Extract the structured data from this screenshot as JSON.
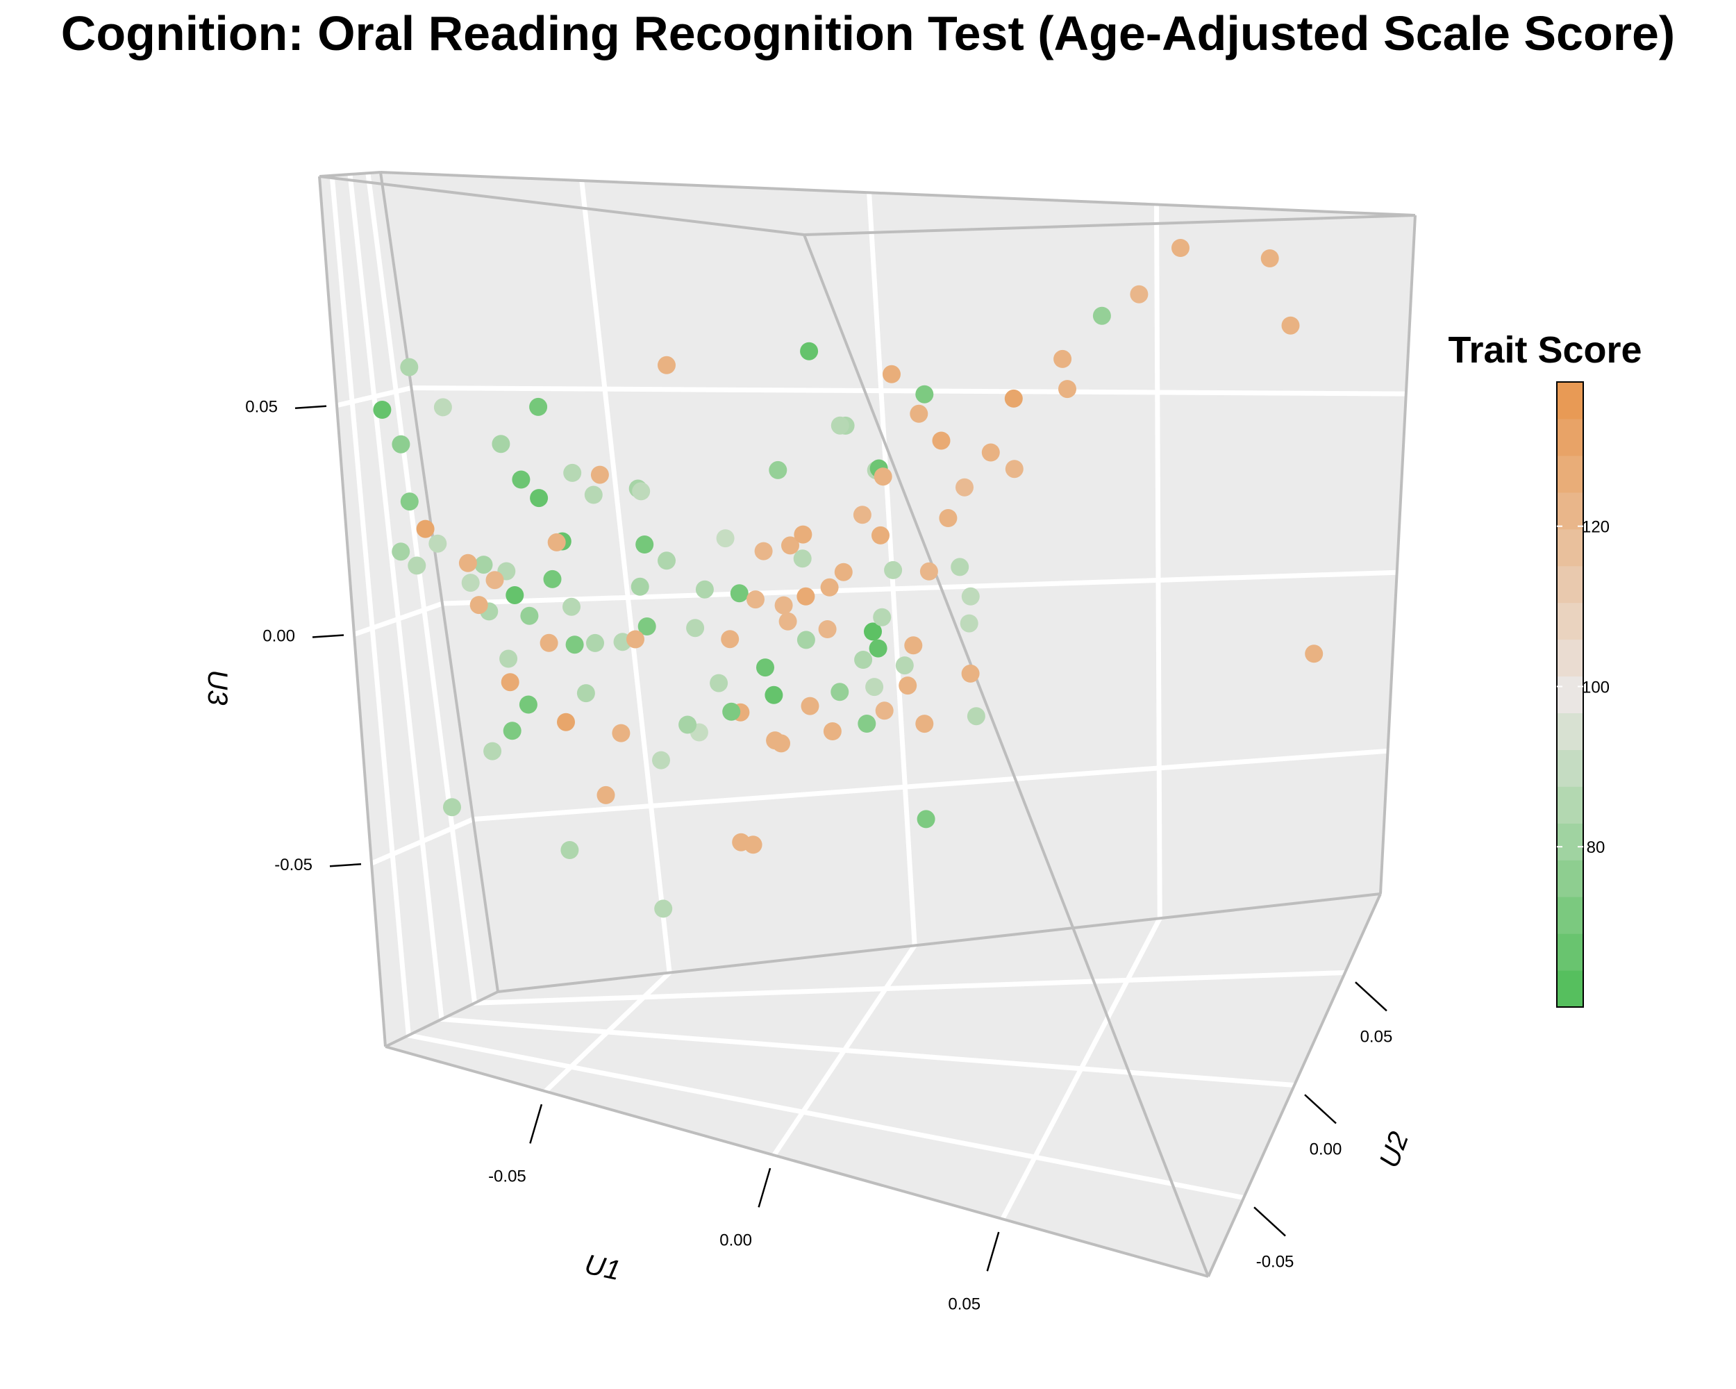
{
  "chart_data": {
    "type": "scatter",
    "projection": "3d",
    "title": "Cognition: Oral Reading Recognition Test (Age-Adjusted Scale Score)",
    "axes": {
      "x": {
        "label": "U1",
        "range": [
          -0.085,
          0.095
        ],
        "ticks": [
          -0.05,
          0.0,
          0.05
        ],
        "tick_labels": [
          "-0.05",
          "0.00",
          "0.05"
        ]
      },
      "y": {
        "label": "U2",
        "range": [
          -0.085,
          0.085
        ],
        "ticks": [
          -0.05,
          0.0,
          0.05
        ],
        "tick_labels": [
          "-0.05",
          "0.00",
          "0.05"
        ]
      },
      "z": {
        "label": "U3",
        "range": [
          -0.09,
          0.1
        ],
        "ticks": [
          -0.05,
          0.0,
          0.05
        ],
        "tick_labels": [
          "-0.05",
          "0.00",
          "0.05"
        ]
      }
    },
    "grid": true,
    "colorbar": {
      "title": "Trait Score",
      "range": [
        60,
        138
      ],
      "ticks": [
        80,
        100,
        120
      ],
      "tick_labels": [
        "80",
        "100",
        "120"
      ],
      "colors": {
        "low": "#4dbd56",
        "mid": "#eae6e3",
        "high": "#e8954c"
      }
    },
    "points": [
      {
        "x": -0.004,
        "y": 0.056,
        "z": 0.062,
        "value": 66
      },
      {
        "x": 0.053,
        "y": 0.057,
        "z": 0.073,
        "value": 78
      },
      {
        "x": 0.072,
        "y": 0.081,
        "z": 0.087,
        "value": 124
      },
      {
        "x": 0.085,
        "y": 0.032,
        "z": 0.093,
        "value": 124
      },
      {
        "x": 0.084,
        "y": 0.066,
        "z": 0.071,
        "value": 124
      },
      {
        "x": 0.079,
        "y": 0.026,
        "z": 0.082,
        "value": 122
      },
      {
        "x": 0.071,
        "y": 0.009,
        "z": 0.068,
        "value": 124
      },
      {
        "x": -0.027,
        "y": 0.036,
        "z": 0.059,
        "value": 124
      },
      {
        "x": 0.079,
        "y": -0.022,
        "z": 0.063,
        "value": 130
      },
      {
        "x": 0.083,
        "y": -0.064,
        "z": 0.072,
        "value": 126
      },
      {
        "x": 0.074,
        "y": -0.028,
        "z": 0.052,
        "value": 124
      },
      {
        "x": 0.055,
        "y": -0.012,
        "z": 0.041,
        "value": 120
      },
      {
        "x": 0.052,
        "y": 0.016,
        "z": 0.041,
        "value": 122
      },
      {
        "x": 0.062,
        "y": -0.033,
        "z": 0.038,
        "value": 124
      },
      {
        "x": 0.056,
        "y": -0.037,
        "z": 0.027,
        "value": 122
      },
      {
        "x": 0.058,
        "y": -0.061,
        "z": 0.042,
        "value": 122
      },
      {
        "x": 0.033,
        "y": -0.013,
        "z": 0.029,
        "value": 126
      },
      {
        "x": 0.027,
        "y": -0.023,
        "z": 0.022,
        "value": 124
      },
      {
        "x": 0.018,
        "y": -0.021,
        "z": 0.029,
        "value": 126
      },
      {
        "x": 0.021,
        "y": 0.019,
        "z": 0.039,
        "value": 68
      },
      {
        "x": 0.016,
        "y": 0.03,
        "z": 0.037,
        "value": 86
      },
      {
        "x": -0.005,
        "y": 0.031,
        "z": 0.036,
        "value": 78
      },
      {
        "x": -0.017,
        "y": 0.028,
        "z": 0.02,
        "value": 90
      },
      {
        "x": 0.041,
        "y": -0.037,
        "z": 0.016,
        "value": 86
      },
      {
        "x": 0.026,
        "y": 0.006,
        "z": 0.018,
        "value": 86
      },
      {
        "x": 0.036,
        "y": -0.056,
        "z": 0.016,
        "value": 122
      },
      {
        "x": 0.006,
        "y": 0.0,
        "z": 0.023,
        "value": 124
      },
      {
        "x": -0.001,
        "y": 0.002,
        "z": 0.021,
        "value": 122
      },
      {
        "x": 0.013,
        "y": 0.001,
        "z": 0.014,
        "value": 124
      },
      {
        "x": 0.033,
        "y": -0.007,
        "z": 0.004,
        "value": 124
      },
      {
        "x": 0.036,
        "y": -0.037,
        "z": -0.004,
        "value": 122
      },
      {
        "x": 0.049,
        "y": -0.016,
        "z": 0.001,
        "value": 124
      },
      {
        "x": 0.01,
        "y": -0.021,
        "z": 0.013,
        "value": 122
      },
      {
        "x": 0.017,
        "y": -0.024,
        "z": 0.016,
        "value": 128
      },
      {
        "x": 0.019,
        "y": -0.02,
        "z": -0.005,
        "value": 78
      },
      {
        "x": 0.042,
        "y": -0.078,
        "z": 0.018,
        "value": 82
      },
      {
        "x": 0.043,
        "y": -0.062,
        "z": -0.001,
        "value": 74
      },
      {
        "x": 0.051,
        "y": -0.061,
        "z": -0.019,
        "value": 72
      },
      {
        "x": 0.088,
        "y": 0.063,
        "z": -0.014,
        "value": 124
      },
      {
        "x": -0.037,
        "y": -0.041,
        "z": 0.024,
        "value": 124
      },
      {
        "x": -0.022,
        "y": -0.018,
        "z": 0.023,
        "value": 70
      },
      {
        "x": -0.017,
        "y": -0.019,
        "z": 0.02,
        "value": 84
      },
      {
        "x": -0.01,
        "y": -0.016,
        "z": 0.014,
        "value": 84
      },
      {
        "x": 0.002,
        "y": -0.017,
        "z": 0.013,
        "value": 122
      },
      {
        "x": -0.006,
        "y": -0.004,
        "z": 0.012,
        "value": 70
      },
      {
        "x": -0.028,
        "y": -0.006,
        "z": 0.012,
        "value": 82
      },
      {
        "x": -0.044,
        "y": -0.008,
        "z": 0.021,
        "value": 66
      },
      {
        "x": -0.039,
        "y": -0.043,
        "z": 0.016,
        "value": 70
      },
      {
        "x": -0.051,
        "y": -0.022,
        "z": 0.005,
        "value": 78
      },
      {
        "x": -0.044,
        "y": -0.036,
        "z": 0.001,
        "value": 124
      },
      {
        "x": -0.021,
        "y": -0.041,
        "z": 0.005,
        "value": 124
      },
      {
        "x": -0.007,
        "y": -0.013,
        "z": 0.003,
        "value": 124
      },
      {
        "x": 0.003,
        "y": -0.001,
        "z": 0.006,
        "value": 122
      },
      {
        "x": 0.016,
        "y": 0.015,
        "z": 0.002,
        "value": 64
      },
      {
        "x": 0.018,
        "y": 0.011,
        "z": -0.001,
        "value": 66
      },
      {
        "x": 0.014,
        "y": 0.012,
        "z": -0.004,
        "value": 84
      },
      {
        "x": 0.025,
        "y": 0.006,
        "z": -0.008,
        "value": 124
      },
      {
        "x": 0.011,
        "y": -0.019,
        "z": -0.009,
        "value": 124
      },
      {
        "x": 0.031,
        "y": -0.004,
        "z": -0.014,
        "value": 124
      },
      {
        "x": 0.036,
        "y": 0.014,
        "z": -0.016,
        "value": 86
      },
      {
        "x": 0.009,
        "y": -0.001,
        "z": -0.018,
        "value": 124
      },
      {
        "x": -0.002,
        "y": -0.004,
        "z": -0.021,
        "value": 124
      },
      {
        "x": -0.012,
        "y": 0.003,
        "z": -0.016,
        "value": 126
      },
      {
        "x": 0.002,
        "y": -0.021,
        "z": -0.017,
        "value": 124
      },
      {
        "x": -0.011,
        "y": 0.024,
        "z": -0.009,
        "value": 68
      },
      {
        "x": 0.008,
        "y": 0.036,
        "z": -0.015,
        "value": 88
      },
      {
        "x": -0.011,
        "y": 0.028,
        "z": -0.016,
        "value": 66
      },
      {
        "x": -0.018,
        "y": 0.011,
        "z": -0.011,
        "value": 86
      },
      {
        "x": -0.014,
        "y": 0.003,
        "z": -0.016,
        "value": 72
      },
      {
        "x": -0.02,
        "y": -0.004,
        "z": -0.02,
        "value": 90
      },
      {
        "x": -0.02,
        "y": -0.013,
        "z": -0.017,
        "value": 82
      },
      {
        "x": -0.025,
        "y": -0.022,
        "z": -0.024,
        "value": 88
      },
      {
        "x": -0.035,
        "y": -0.015,
        "z": -0.02,
        "value": 124
      },
      {
        "x": -0.046,
        "y": -0.021,
        "z": -0.018,
        "value": 130
      },
      {
        "x": -0.057,
        "y": -0.025,
        "z": -0.01,
        "value": 128
      },
      {
        "x": -0.061,
        "y": -0.002,
        "z": -0.007,
        "value": 86
      },
      {
        "x": -0.043,
        "y": 0.007,
        "z": -0.003,
        "value": 84
      },
      {
        "x": -0.032,
        "y": 0.011,
        "z": 0.001,
        "value": 72
      },
      {
        "x": -0.022,
        "y": 0.013,
        "z": 0.001,
        "value": 86
      },
      {
        "x": -0.049,
        "y": 0.016,
        "z": 0.004,
        "value": 86
      },
      {
        "x": -0.061,
        "y": 0.016,
        "z": 0.006,
        "value": 66
      },
      {
        "x": -0.067,
        "y": 0.016,
        "z": 0.002,
        "value": 84
      },
      {
        "x": -0.071,
        "y": 0.021,
        "z": 0.008,
        "value": 88
      },
      {
        "x": -0.063,
        "y": 0.021,
        "z": 0.011,
        "value": 86
      },
      {
        "x": -0.066,
        "y": 0.01,
        "z": 0.013,
        "value": 82
      },
      {
        "x": -0.065,
        "y": -0.017,
        "z": 0.015,
        "value": 124
      },
      {
        "x": -0.071,
        "y": -0.021,
        "z": 0.019,
        "value": 88
      },
      {
        "x": -0.081,
        "y": -0.014,
        "z": 0.016,
        "value": 82
      },
      {
        "x": -0.078,
        "y": -0.011,
        "z": 0.013,
        "value": 86
      },
      {
        "x": -0.079,
        "y": -0.004,
        "z": 0.027,
        "value": 74
      },
      {
        "x": -0.082,
        "y": 0.017,
        "z": 0.039,
        "value": 76
      },
      {
        "x": -0.084,
        "y": 0.005,
        "z": 0.047,
        "value": 66
      },
      {
        "x": -0.077,
        "y": 0.007,
        "z": 0.057,
        "value": 84
      },
      {
        "x": -0.075,
        "y": 0.041,
        "z": 0.047,
        "value": 88
      },
      {
        "x": -0.055,
        "y": 0.038,
        "z": 0.048,
        "value": 70
      },
      {
        "x": -0.061,
        "y": 0.022,
        "z": 0.04,
        "value": 82
      },
      {
        "x": -0.055,
        "y": 0.008,
        "z": 0.033,
        "value": 68
      },
      {
        "x": -0.044,
        "y": 0.011,
        "z": 0.035,
        "value": 86
      },
      {
        "x": -0.038,
        "y": 0.003,
        "z": 0.031,
        "value": 86
      },
      {
        "x": -0.049,
        "y": -0.004,
        "z": 0.03,
        "value": 66
      },
      {
        "x": -0.028,
        "y": 0.004,
        "z": 0.033,
        "value": 82
      },
      {
        "x": -0.023,
        "y": -0.011,
        "z": 0.034,
        "value": 88
      },
      {
        "x": -0.029,
        "y": -0.022,
        "z": 0.038,
        "value": 124
      },
      {
        "x": -0.061,
        "y": -0.031,
        "z": 0.007,
        "value": 124
      },
      {
        "x": -0.054,
        "y": -0.042,
        "z": 0.014,
        "value": 122
      },
      {
        "x": -0.071,
        "y": -0.037,
        "z": 0.023,
        "value": 130
      },
      {
        "x": -0.065,
        "y": 0.041,
        "z": -0.021,
        "value": 70
      },
      {
        "x": -0.074,
        "y": 0.044,
        "z": -0.032,
        "value": 86
      },
      {
        "x": -0.067,
        "y": 0.028,
        "z": -0.026,
        "value": 72
      },
      {
        "x": -0.082,
        "y": 0.031,
        "z": -0.044,
        "value": 84
      },
      {
        "x": -0.049,
        "y": 0.02,
        "z": -0.016,
        "value": 84
      },
      {
        "x": -0.058,
        "y": 0.028,
        "z": -0.053,
        "value": 84
      },
      {
        "x": -0.043,
        "y": -0.003,
        "z": -0.036,
        "value": 124
      },
      {
        "x": -0.018,
        "y": 0.011,
        "z": -0.047,
        "value": 124
      },
      {
        "x": -0.015,
        "y": 0.009,
        "z": -0.047,
        "value": 124
      },
      {
        "x": -0.041,
        "y": 0.034,
        "z": -0.067,
        "value": 86
      },
      {
        "x": 0.013,
        "y": 0.042,
        "z": -0.011,
        "value": 86
      },
      {
        "x": 0.031,
        "y": 0.03,
        "z": 0.015,
        "value": 86
      },
      {
        "x": 0.036,
        "y": 0.021,
        "z": 0.01,
        "value": 88
      },
      {
        "x": 0.041,
        "y": 0.006,
        "z": 0.007,
        "value": 88
      },
      {
        "x": 0.001,
        "y": 0.021,
        "z": 0.017,
        "value": 86
      },
      {
        "x": -0.052,
        "y": 0.03,
        "z": -0.006,
        "value": 72
      },
      {
        "x": -0.04,
        "y": 0.021,
        "z": -0.004,
        "value": 86
      },
      {
        "x": 0.004,
        "y": 0.049,
        "z": 0.045,
        "value": 84
      },
      {
        "x": 0.02,
        "y": 0.05,
        "z": 0.053,
        "value": 72
      },
      {
        "x": 0.006,
        "y": 0.04,
        "z": 0.046,
        "value": 86
      },
      {
        "x": 0.058,
        "y": 0.031,
        "z": 0.058,
        "value": 124
      },
      {
        "x": 0.045,
        "y": 0.0,
        "z": 0.049,
        "value": 128
      },
      {
        "x": 0.03,
        "y": 0.0,
        "z": 0.04,
        "value": 124
      },
      {
        "x": 0.031,
        "y": 0.02,
        "z": 0.052,
        "value": 124
      }
    ]
  }
}
